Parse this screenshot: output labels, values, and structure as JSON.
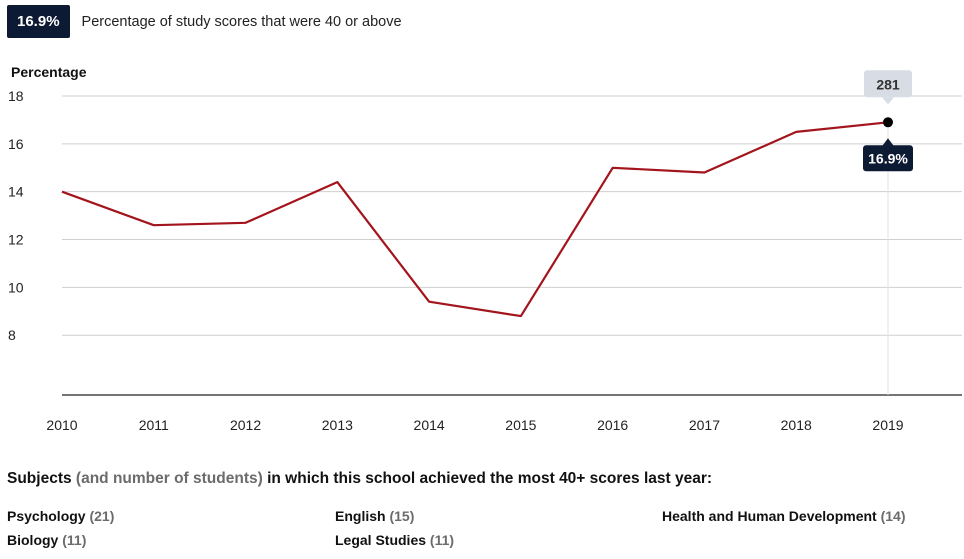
{
  "header": {
    "badge": "16.9%",
    "label": "Percentage of study scores that were 40 or above"
  },
  "chart_data": {
    "type": "line",
    "ylabel": "Percentage",
    "x": [
      "2010",
      "2011",
      "2012",
      "2013",
      "2014",
      "2015",
      "2016",
      "2017",
      "2018",
      "2019"
    ],
    "y_ticks": [
      8,
      10,
      12,
      14,
      16,
      18
    ],
    "ylim": [
      5.5,
      18
    ],
    "series": [
      {
        "values": [
          14.0,
          12.6,
          12.7,
          14.4,
          9.4,
          8.8,
          15.0,
          14.8,
          16.5,
          16.9
        ],
        "color": "#a3141c"
      }
    ],
    "highlight": {
      "x": "2019",
      "value_label": "16.9%",
      "tooltip": "281"
    },
    "grid": true
  },
  "subjects": {
    "title_part1": "Subjects",
    "title_part2": "(and number of students)",
    "title_part3": "in which this school achieved the most 40+ scores last year:",
    "items": [
      {
        "name": "Psychology",
        "count": "(21)"
      },
      {
        "name": "English",
        "count": "(15)"
      },
      {
        "name": "Health and Human Development",
        "count": "(14)"
      },
      {
        "name": "Biology",
        "count": "(11)"
      },
      {
        "name": "Legal Studies",
        "count": "(11)"
      }
    ]
  }
}
